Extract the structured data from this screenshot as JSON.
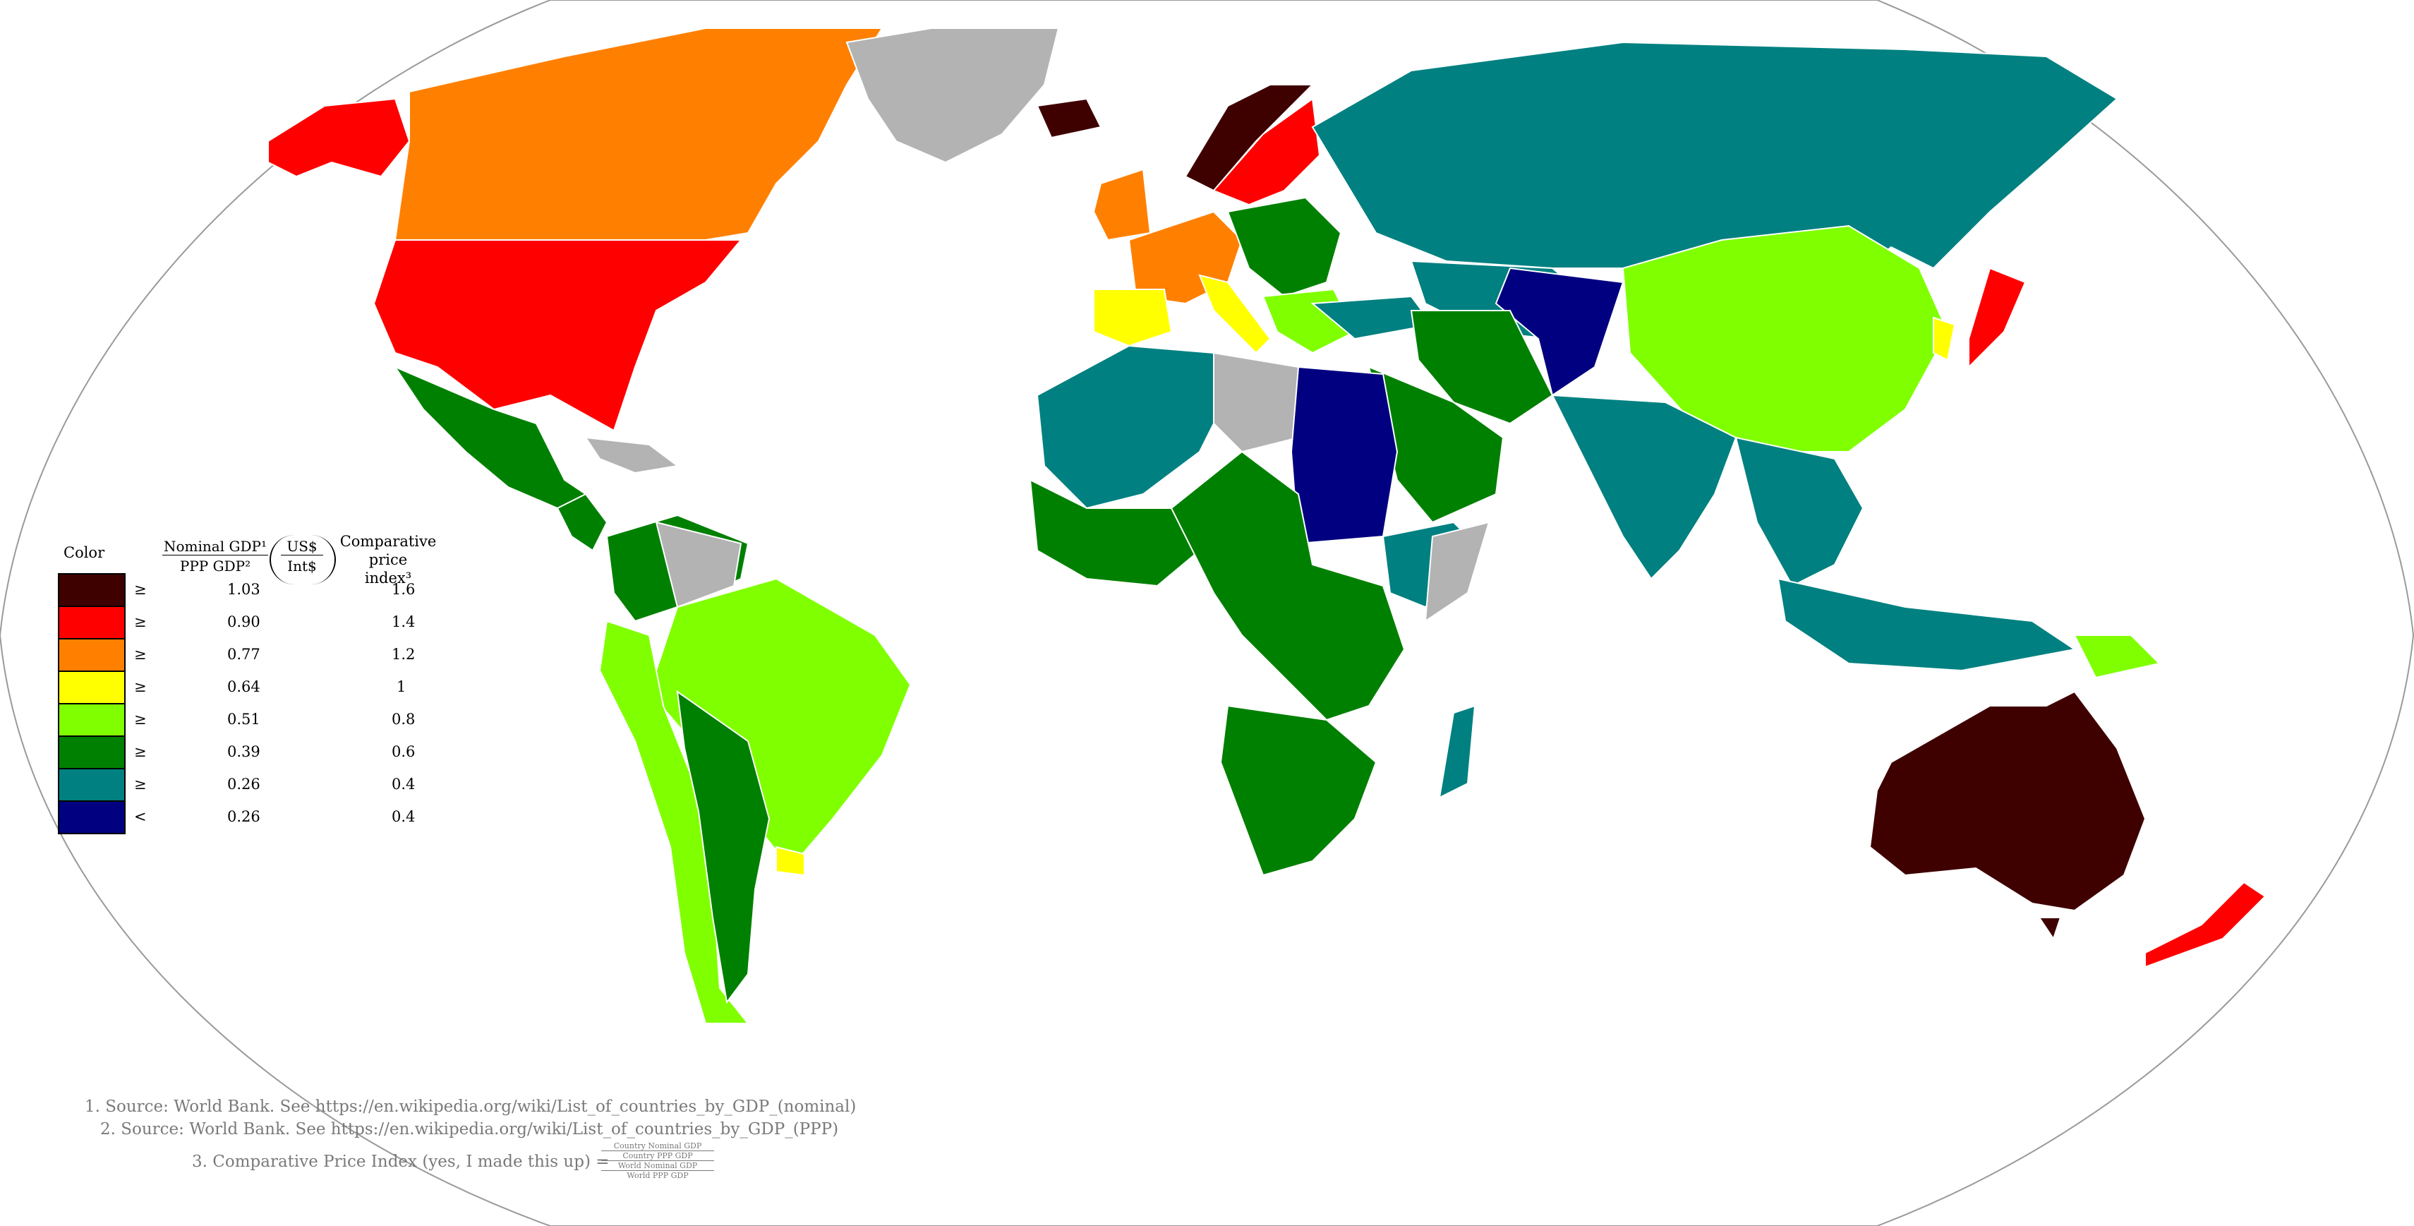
{
  "legend": {
    "color_header": "Color",
    "ratio_header_num": "Nominal GDP¹",
    "ratio_header_den": "PPP GDP²",
    "ratio_unit_num": "US$",
    "ratio_unit_den": "Int$",
    "index_header_line1": "Comparative price",
    "index_header_line2": "index³",
    "rows": [
      {
        "color": "#3f0000",
        "op": "≥",
        "ratio": "1.03",
        "index": "1.6"
      },
      {
        "color": "#ff0000",
        "op": "≥",
        "ratio": "0.90",
        "index": "1.4"
      },
      {
        "color": "#ff8000",
        "op": "≥",
        "ratio": "0.77",
        "index": "1.2"
      },
      {
        "color": "#ffff00",
        "op": "≥",
        "ratio": "0.64",
        "index": "1"
      },
      {
        "color": "#80ff00",
        "op": "≥",
        "ratio": "0.51",
        "index": "0.8"
      },
      {
        "color": "#008000",
        "op": "≥",
        "ratio": "0.39",
        "index": "0.6"
      },
      {
        "color": "#008080",
        "op": "≥",
        "ratio": "0.26",
        "index": "0.4"
      },
      {
        "color": "#000080",
        "op": "<",
        "ratio": "0.26",
        "index": "0.4"
      }
    ]
  },
  "colors": {
    "no_data": "#b3b3b3",
    "ocean": "#ffffff",
    "border": "#ffffff",
    "frame": "#9a9a9a"
  },
  "notes": {
    "n1": "1.     Source: World Bank. See https://en.wikipedia.org/wiki/List_of_countries_by_GDP_(nominal)",
    "n2": "2.     Source: World Bank. See https://en.wikipedia.org/wiki/List_of_countries_by_GDP_(PPP)",
    "n3": "3.     Comparative Price Index (yes, I made this up) =",
    "n3_cn": "Country Nominal GDP",
    "n3_cp": "Country PPP GDP",
    "n3_wn": "World Nominal GDP",
    "n3_wp": "World PPP GDP"
  }
}
